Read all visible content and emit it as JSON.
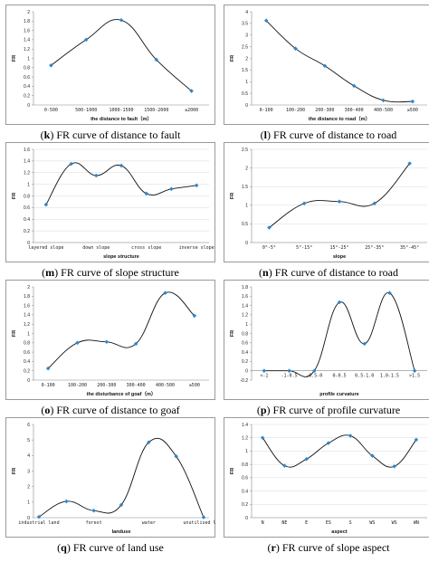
{
  "colors": {
    "line": "#111111",
    "marker": "#2e86c9",
    "grid": "#d9d9d9",
    "axis": "#888888"
  },
  "chart_data": [
    {
      "id": "k",
      "type": "line",
      "caption_letter": "k",
      "caption_text": " FR curve of distance to fault",
      "xlabel": "the distance to fault（m）",
      "ylabel": "FR",
      "categories": [
        "0-500",
        "500-1000",
        "1000-1500",
        "1500-2000",
        "≥2000"
      ],
      "values": [
        0.85,
        1.4,
        1.82,
        0.97,
        0.3
      ],
      "ylim": [
        0,
        2
      ],
      "yticks": [
        "0",
        "0.2",
        "0.4",
        "0.6",
        "0.8",
        "1",
        "1.2",
        "1.4",
        "1.6",
        "1.8",
        "2"
      ],
      "grid": false,
      "x_padding": true
    },
    {
      "id": "l",
      "type": "line",
      "caption_letter": "l",
      "caption_text": " FR curve of distance to road",
      "xlabel": "the distance to road（m）",
      "ylabel": "FR",
      "categories": [
        "0-100",
        "100-200",
        "200-300",
        "300-400",
        "400-500",
        "≥500"
      ],
      "values": [
        3.62,
        2.42,
        1.68,
        0.82,
        0.2,
        0.15
      ],
      "ylim": [
        0,
        4
      ],
      "yticks": [
        "0",
        "0.5",
        "1",
        "1.5",
        "2",
        "2.5",
        "3",
        "3.5",
        "4"
      ],
      "grid": false,
      "x_padding": true
    },
    {
      "id": "m",
      "type": "line",
      "caption_letter": "m",
      "caption_text": " FR curve of slope structure",
      "xlabel": "slope structure",
      "ylabel": "FR",
      "categories": [
        "layered slope",
        "",
        "down slope",
        "",
        "cross slope",
        "",
        "inverse slope"
      ],
      "values": [
        0.65,
        1.35,
        1.15,
        1.32,
        0.84,
        0.92,
        0.98
      ],
      "ylim": [
        0,
        1.6
      ],
      "yticks": [
        "0",
        "0.2",
        "0.4",
        "0.6",
        "0.8",
        "1",
        "1.2",
        "1.4",
        "1.6"
      ],
      "grid": true,
      "x_padding": true
    },
    {
      "id": "n",
      "type": "line",
      "caption_letter": "n",
      "caption_text": " FR curve of distance to road",
      "xlabel": "slope",
      "ylabel": "FR",
      "categories": [
        "0°-5°",
        "5°-15°",
        "15°-25°",
        "25°-35°",
        "35°-45°"
      ],
      "values": [
        0.4,
        1.05,
        1.1,
        1.05,
        2.12
      ],
      "ylim": [
        0,
        2.5
      ],
      "yticks": [
        "0",
        "0.5",
        "1",
        "1.5",
        "2",
        "2.5"
      ],
      "grid": true,
      "x_padding": true
    },
    {
      "id": "o",
      "type": "line",
      "caption_letter": "o",
      "caption_text": " FR curve of distance to goaf",
      "xlabel": "the disturbance of goaf（m）",
      "ylabel": "FR",
      "categories": [
        "0-100",
        "100-200",
        "200-300",
        "300-400",
        "400-500",
        "≥500"
      ],
      "values": [
        0.25,
        0.8,
        0.82,
        0.78,
        1.87,
        1.38
      ],
      "ylim": [
        0,
        2
      ],
      "yticks": [
        "0",
        "0.2",
        "0.4",
        "0.6",
        "0.8",
        "1",
        "1.2",
        "1.4",
        "1.6",
        "1.8",
        "2"
      ],
      "grid": false,
      "x_padding": true
    },
    {
      "id": "p",
      "type": "line",
      "caption_letter": "p",
      "caption_text": " FR curve of profile curvature",
      "xlabel": "profile curvature",
      "ylabel": "FR",
      "categories": [
        "<-1",
        "-1-0.5",
        "-0.5-0",
        "0-0.5",
        "0.5-1.0",
        "1.0-1.5",
        ">1.5"
      ],
      "values": [
        0,
        0,
        0,
        1.47,
        0.58,
        1.67,
        0
      ],
      "ylim": [
        -0.2,
        1.8
      ],
      "yticks": [
        "-0.2",
        "0",
        "0.2",
        "0.4",
        "0.6",
        "0.8",
        "1",
        "1.2",
        "1.4",
        "1.6",
        "1.8"
      ],
      "grid": false,
      "x_padding": true
    },
    {
      "id": "q",
      "type": "line",
      "caption_letter": "q",
      "caption_text": " FR curve of land use",
      "xlabel": "landuse",
      "ylabel": "FR",
      "categories": [
        "industrial land",
        "",
        "forest",
        "",
        "water",
        "",
        "unutilised land"
      ],
      "values": [
        0.05,
        1.05,
        0.45,
        0.82,
        4.85,
        3.95,
        0.02
      ],
      "ylim": [
        0,
        6
      ],
      "yticks": [
        "0",
        "1",
        "2",
        "3",
        "4",
        "5",
        "6"
      ],
      "grid": false,
      "x_padding": false
    },
    {
      "id": "r",
      "type": "line",
      "caption_letter": "r",
      "caption_text": " FR curve of slope aspect",
      "xlabel": "aspect",
      "ylabel": "FR",
      "categories": [
        "N",
        "NE",
        "E",
        "ES",
        "S",
        "WS",
        "WS",
        "WN"
      ],
      "values": [
        1.2,
        0.78,
        0.88,
        1.12,
        1.23,
        0.93,
        0.77,
        1.17
      ],
      "ylim": [
        0,
        1.4
      ],
      "yticks": [
        "0",
        "0.2",
        "0.4",
        "0.6",
        "0.8",
        "1",
        "1.2",
        "1.4"
      ],
      "grid": true,
      "x_padding": true
    }
  ]
}
